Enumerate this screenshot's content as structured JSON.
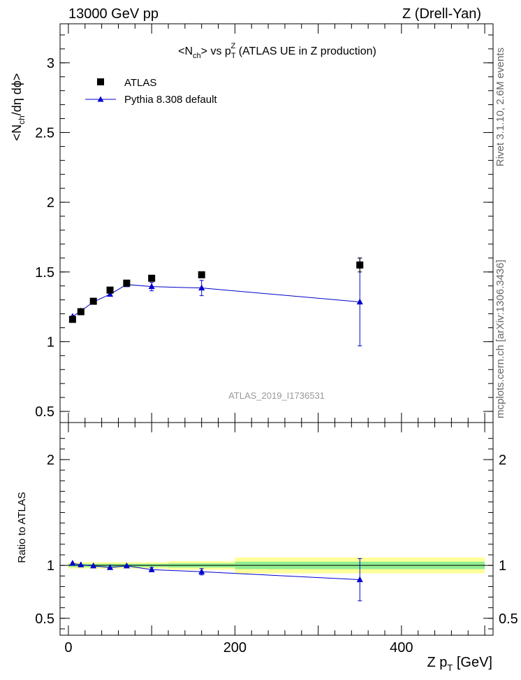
{
  "header": {
    "left": "13000 GeV pp",
    "right": "Z (Drell-Yan)"
  },
  "side_labels": {
    "rivet": "Rivet 3.1.10, 2.6M events",
    "mcplots": "mcplots.cern.ch [arXiv:1306.3436]"
  },
  "watermark": "ATLAS_2019_I1736531",
  "colors": {
    "data": "#000000",
    "mc": "#0000cc",
    "band_inner": "#90ee90",
    "band_outer": "#ffff99"
  },
  "chart_data": [
    {
      "type": "scatter",
      "title_parts": {
        "a": "<N",
        "a_sub": "ch",
        "b": "> vs p",
        "b_sub": "T",
        "b_sup": "Z",
        "c": " (ATLAS UE in Z production)"
      },
      "ylabel_parts": {
        "a": "<N",
        "a_sub": "ch",
        "b": "/dη dϕ>"
      },
      "xlim": [
        -10,
        510
      ],
      "ylim": [
        0.42,
        3.28
      ],
      "yticks": [
        0.5,
        1,
        1.5,
        2,
        2.5,
        3
      ],
      "ytick_labels": [
        "0.5",
        "1",
        "1.5",
        "2",
        "2.5",
        "3"
      ],
      "legend_position": "top-left",
      "series": [
        {
          "name": "ATLAS",
          "marker": "square",
          "x": [
            5,
            15,
            30,
            50,
            70,
            100,
            160,
            350
          ],
          "y": [
            1.16,
            1.215,
            1.29,
            1.37,
            1.42,
            1.455,
            1.48,
            1.55
          ],
          "yerr": [
            0.005,
            0.005,
            0.005,
            0.005,
            0.008,
            0.01,
            0.015,
            0.05
          ]
        },
        {
          "name": "Pythia 8.308 default",
          "marker": "triangle",
          "x": [
            5,
            15,
            30,
            50,
            70,
            100,
            160,
            350
          ],
          "y": [
            1.18,
            1.22,
            1.285,
            1.34,
            1.41,
            1.395,
            1.385,
            1.285
          ],
          "yerr": [
            0.005,
            0.005,
            0.008,
            0.01,
            0.015,
            0.03,
            0.055,
            0.315
          ]
        }
      ]
    },
    {
      "type": "scatter",
      "ylabel": "Ratio to ATLAS",
      "xlabel_parts": {
        "a": "Z p",
        "sub": "T",
        "b": " [GeV]"
      },
      "xlim": [
        -10,
        510
      ],
      "ylim": [
        0.34,
        2.35
      ],
      "xticks": [
        0,
        200,
        400
      ],
      "xtick_labels": [
        "0",
        "200",
        "400"
      ],
      "yticks": [
        0.5,
        1,
        2
      ],
      "ytick_labels": [
        "0.5",
        "1",
        "2"
      ],
      "bands": [
        {
          "x_range": [
            0,
            120
          ],
          "inner": [
            0.985,
            1.015
          ],
          "outer": [
            0.97,
            1.03
          ]
        },
        {
          "x_range": [
            120,
            200
          ],
          "inner": [
            0.98,
            1.02
          ],
          "outer": [
            0.96,
            1.04
          ]
        },
        {
          "x_range": [
            200,
            500
          ],
          "inner": [
            0.965,
            1.035
          ],
          "outer": [
            0.925,
            1.075
          ]
        }
      ],
      "series": [
        {
          "name": "Pythia 8.308 default",
          "x": [
            5,
            15,
            30,
            50,
            70,
            100,
            160,
            350
          ],
          "y": [
            1.02,
            1.005,
            0.995,
            0.98,
            0.995,
            0.96,
            0.94,
            0.865
          ],
          "yerr": [
            0.008,
            0.008,
            0.008,
            0.01,
            0.012,
            0.02,
            0.03,
            0.2
          ]
        }
      ]
    }
  ]
}
